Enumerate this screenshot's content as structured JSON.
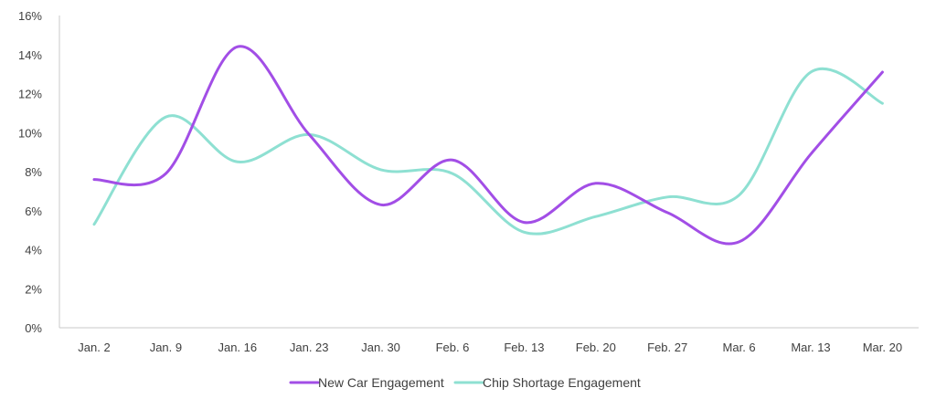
{
  "chart_data": {
    "type": "line",
    "title": "",
    "xlabel": "",
    "ylabel": "",
    "categories": [
      "Jan. 2",
      "Jan. 9",
      "Jan. 16",
      "Jan. 23",
      "Jan. 30",
      "Feb. 6",
      "Feb. 13",
      "Feb. 20",
      "Feb. 27",
      "Mar. 6",
      "Mar. 13",
      "Mar. 20"
    ],
    "y_ticks": [
      "0%",
      "2%",
      "4%",
      "6%",
      "8%",
      "10%",
      "12%",
      "14%",
      "16%"
    ],
    "ylim": [
      0,
      16
    ],
    "y_unit": "%",
    "grid": false,
    "smooth": true,
    "legend_position": "bottom",
    "series": [
      {
        "name": "New Car Engagement",
        "color": "#a24ee6",
        "values": [
          7.6,
          7.9,
          14.4,
          9.9,
          6.3,
          8.6,
          5.4,
          7.4,
          5.9,
          4.4,
          8.9,
          13.1
        ]
      },
      {
        "name": "Chip Shortage Engagement",
        "color": "#8ee0d2",
        "values": [
          5.3,
          10.8,
          8.5,
          9.9,
          8.1,
          7.9,
          4.9,
          5.7,
          6.7,
          6.8,
          13.1,
          11.5
        ]
      }
    ]
  }
}
